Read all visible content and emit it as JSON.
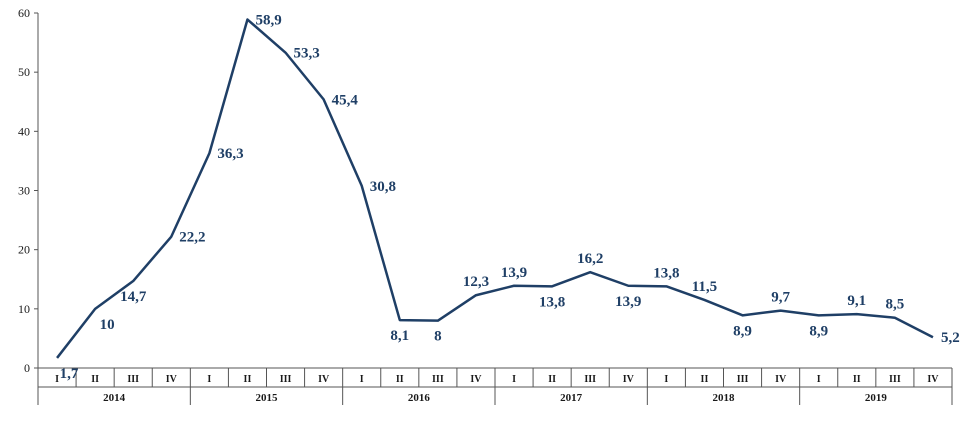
{
  "chart_data": {
    "type": "line",
    "title": "",
    "xlabel": "",
    "ylabel": "",
    "ylim": [
      0,
      60
    ],
    "yticks": [
      0,
      10,
      20,
      30,
      40,
      50,
      60
    ],
    "grid": false,
    "line_color": "#1f3f66",
    "years": [
      "2014",
      "2015",
      "2016",
      "2017",
      "2018",
      "2019"
    ],
    "quarters": [
      "I",
      "II",
      "III",
      "IV"
    ],
    "categories": [
      "2014 I",
      "2014 II",
      "2014 III",
      "2014 IV",
      "2015 I",
      "2015 II",
      "2015 III",
      "2015 IV",
      "2016 I",
      "2016 II",
      "2016 III",
      "2016 IV",
      "2017 I",
      "2017 II",
      "2017 III",
      "2017 IV",
      "2018 I",
      "2018 II",
      "2018 III",
      "2018 IV",
      "2019 I",
      "2019 II",
      "2019 III",
      "2019 IV"
    ],
    "values": [
      1.7,
      10,
      14.7,
      22.2,
      36.3,
      58.9,
      53.3,
      45.4,
      30.8,
      8.1,
      8,
      12.3,
      13.9,
      13.8,
      16.2,
      13.9,
      13.8,
      11.5,
      8.9,
      9.7,
      8.9,
      9.1,
      8.5,
      5.2
    ],
    "data_labels": [
      "1,7",
      "10",
      "14,7",
      "22,2",
      "36,3",
      "58,9",
      "53,3",
      "45,4",
      "30,8",
      "8,1",
      "8",
      "12,3",
      "13,9",
      "13,8",
      "16,2",
      "13,9",
      "13,8",
      "11,5",
      "8,9",
      "9,7",
      "8,9",
      "9,1",
      "8,5",
      "5,2"
    ],
    "label_position": [
      "below",
      "below",
      "below",
      "right",
      "right",
      "right",
      "right",
      "right",
      "right",
      "below",
      "below",
      "above",
      "above",
      "below",
      "above",
      "below",
      "above",
      "above",
      "below",
      "above",
      "below",
      "above",
      "above",
      "right"
    ]
  }
}
